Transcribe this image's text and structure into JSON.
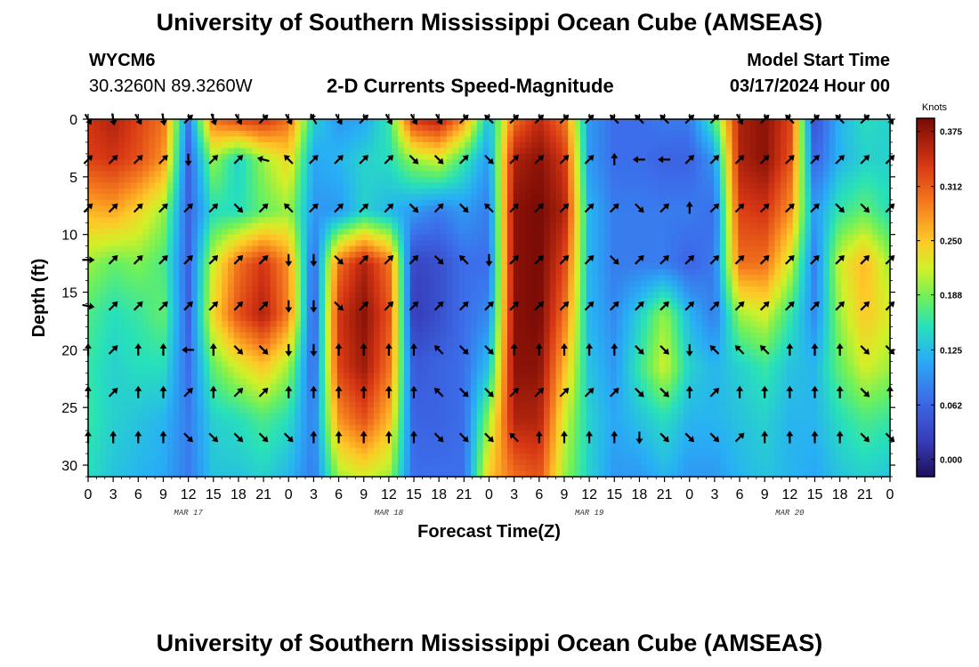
{
  "header": {
    "title": "University of Southern Mississippi Ocean Cube (AMSEAS)",
    "station_id": "WYCM6",
    "coordinates": "30.3260N  89.3260W",
    "plot_title": "2-D Currents Speed-Magnitude",
    "model_start_label": "Model Start Time",
    "model_start_value": "03/17/2024 Hour 00"
  },
  "footer": {
    "title": "University of Southern Mississippi Ocean Cube (AMSEAS)"
  },
  "chart_data": {
    "type": "heatmap",
    "title": "2-D Currents Speed-Magnitude",
    "xlabel": "Forecast Time(Z)",
    "ylabel": "Depth (ft)",
    "x_range": [
      0,
      96
    ],
    "y_range": [
      0,
      31
    ],
    "x_ticks": [
      0,
      3,
      6,
      9,
      12,
      15,
      18,
      21,
      24,
      27,
      30,
      33,
      36,
      39,
      42,
      45,
      48,
      51,
      54,
      57,
      60,
      63,
      66,
      69,
      72,
      75,
      78,
      81,
      84,
      87,
      90,
      93,
      96
    ],
    "x_tick_labels": [
      "0",
      "3",
      "6",
      "9",
      "12",
      "15",
      "18",
      "21",
      "0",
      "3",
      "6",
      "9",
      "12",
      "15",
      "18",
      "21",
      "0",
      "3",
      "6",
      "9",
      "12",
      "15",
      "18",
      "21",
      "0",
      "3",
      "6",
      "9",
      "12",
      "15",
      "18",
      "21",
      "0"
    ],
    "y_ticks": [
      0,
      5,
      10,
      15,
      20,
      25,
      30
    ],
    "y_tick_labels": [
      "0",
      "5",
      "10",
      "15",
      "20",
      "25",
      "30"
    ],
    "date_labels": [
      {
        "label": "MAR 17",
        "hour": 12
      },
      {
        "label": "MAR 18",
        "hour": 36
      },
      {
        "label": "MAR 19",
        "hour": 60
      },
      {
        "label": "MAR 20",
        "hour": 84
      }
    ],
    "colorbar": {
      "unit": "Knots",
      "min": -0.02,
      "max": 0.39,
      "ticks": [
        0.375,
        0.312,
        0.25,
        0.188,
        0.125,
        0.062,
        0.0
      ],
      "tick_labels": [
        "0.375",
        "0.312",
        "0.250",
        "0.188",
        "0.125",
        "0.062",
        "0.000"
      ]
    },
    "speed_profiles": [
      {
        "hour": 0,
        "speeds": [
          0.34,
          0.33,
          0.26,
          0.2,
          0.17,
          0.16,
          0.16,
          0.15
        ]
      },
      {
        "hour": 3,
        "speeds": [
          0.36,
          0.34,
          0.27,
          0.18,
          0.15,
          0.14,
          0.14,
          0.13
        ]
      },
      {
        "hour": 6,
        "speeds": [
          0.33,
          0.32,
          0.24,
          0.19,
          0.16,
          0.15,
          0.13,
          0.12
        ]
      },
      {
        "hour": 9,
        "speeds": [
          0.3,
          0.28,
          0.2,
          0.17,
          0.18,
          0.15,
          0.12,
          0.11
        ]
      },
      {
        "hour": 12,
        "speeds": [
          0.08,
          0.06,
          0.06,
          0.06,
          0.06,
          0.07,
          0.08,
          0.08
        ]
      },
      {
        "hour": 15,
        "speeds": [
          0.3,
          0.2,
          0.15,
          0.22,
          0.24,
          0.18,
          0.14,
          0.13
        ]
      },
      {
        "hour": 18,
        "speeds": [
          0.33,
          0.14,
          0.15,
          0.3,
          0.32,
          0.22,
          0.15,
          0.13
        ]
      },
      {
        "hour": 21,
        "speeds": [
          0.34,
          0.2,
          0.18,
          0.34,
          0.36,
          0.25,
          0.17,
          0.14
        ]
      },
      {
        "hour": 24,
        "speeds": [
          0.3,
          0.24,
          0.2,
          0.28,
          0.29,
          0.2,
          0.15,
          0.12
        ]
      },
      {
        "hour": 27,
        "speeds": [
          0.14,
          0.11,
          0.1,
          0.06,
          0.05,
          0.06,
          0.08,
          0.08
        ]
      },
      {
        "hour": 30,
        "speeds": [
          0.1,
          0.12,
          0.1,
          0.3,
          0.34,
          0.33,
          0.28,
          0.2
        ]
      },
      {
        "hour": 33,
        "speeds": [
          0.11,
          0.14,
          0.14,
          0.36,
          0.38,
          0.37,
          0.32,
          0.22
        ]
      },
      {
        "hour": 36,
        "speeds": [
          0.16,
          0.15,
          0.12,
          0.3,
          0.32,
          0.3,
          0.26,
          0.2
        ]
      },
      {
        "hour": 39,
        "speeds": [
          0.34,
          0.2,
          0.1,
          0.03,
          0.02,
          0.05,
          0.06,
          0.07
        ]
      },
      {
        "hour": 42,
        "speeds": [
          0.36,
          0.22,
          0.08,
          0.04,
          0.04,
          0.06,
          0.06,
          0.07
        ]
      },
      {
        "hour": 45,
        "speeds": [
          0.28,
          0.16,
          0.1,
          0.07,
          0.07,
          0.07,
          0.07,
          0.07
        ]
      },
      {
        "hour": 48,
        "speeds": [
          0.12,
          0.1,
          0.08,
          0.07,
          0.09,
          0.13,
          0.2,
          0.25
        ]
      },
      {
        "hour": 51,
        "speeds": [
          0.3,
          0.36,
          0.38,
          0.38,
          0.38,
          0.38,
          0.36,
          0.3
        ]
      },
      {
        "hour": 54,
        "speeds": [
          0.35,
          0.38,
          0.39,
          0.39,
          0.39,
          0.38,
          0.36,
          0.32
        ]
      },
      {
        "hour": 57,
        "speeds": [
          0.3,
          0.34,
          0.36,
          0.33,
          0.3,
          0.26,
          0.22,
          0.2
        ]
      },
      {
        "hour": 60,
        "speeds": [
          0.1,
          0.1,
          0.12,
          0.12,
          0.12,
          0.13,
          0.14,
          0.14
        ]
      },
      {
        "hour": 63,
        "speeds": [
          0.07,
          0.07,
          0.08,
          0.08,
          0.09,
          0.1,
          0.11,
          0.1
        ]
      },
      {
        "hour": 66,
        "speeds": [
          0.07,
          0.07,
          0.08,
          0.08,
          0.14,
          0.16,
          0.13,
          0.1
        ]
      },
      {
        "hour": 69,
        "speeds": [
          0.08,
          0.06,
          0.08,
          0.08,
          0.2,
          0.22,
          0.15,
          0.12
        ]
      },
      {
        "hour": 72,
        "speeds": [
          0.08,
          0.06,
          0.08,
          0.06,
          0.12,
          0.14,
          0.12,
          0.1
        ]
      },
      {
        "hour": 75,
        "speeds": [
          0.17,
          0.1,
          0.07,
          0.08,
          0.08,
          0.12,
          0.12,
          0.1
        ]
      },
      {
        "hour": 78,
        "speeds": [
          0.36,
          0.36,
          0.33,
          0.3,
          0.2,
          0.14,
          0.13,
          0.12
        ]
      },
      {
        "hour": 81,
        "speeds": [
          0.38,
          0.38,
          0.34,
          0.3,
          0.22,
          0.16,
          0.14,
          0.13
        ]
      },
      {
        "hour": 84,
        "speeds": [
          0.33,
          0.32,
          0.28,
          0.22,
          0.16,
          0.13,
          0.12,
          0.12
        ]
      },
      {
        "hour": 87,
        "speeds": [
          0.04,
          0.06,
          0.1,
          0.08,
          0.09,
          0.12,
          0.12,
          0.11
        ]
      },
      {
        "hour": 90,
        "speeds": [
          0.12,
          0.12,
          0.16,
          0.22,
          0.2,
          0.18,
          0.15,
          0.13
        ]
      },
      {
        "hour": 93,
        "speeds": [
          0.15,
          0.14,
          0.18,
          0.26,
          0.25,
          0.22,
          0.17,
          0.14
        ]
      },
      {
        "hour": 96,
        "speeds": [
          0.14,
          0.14,
          0.15,
          0.2,
          0.22,
          0.2,
          0.16,
          0.13
        ]
      }
    ],
    "profile_depths": [
      0,
      3.5,
      8,
      12.5,
      17,
      21.5,
      26,
      31
    ],
    "vector_depths": [
      0,
      3.5,
      7.7,
      12.2,
      16.2,
      20,
      23.7,
      27.6
    ],
    "vector_hours": [
      0,
      3,
      6,
      9,
      12,
      15,
      18,
      21,
      24,
      27,
      30,
      33,
      36,
      39,
      42,
      45,
      48,
      51,
      54,
      57,
      60,
      63,
      66,
      69,
      72,
      75,
      78,
      81,
      84,
      87,
      90,
      93,
      96
    ],
    "vector_direction_note": "arrow directions in compass degrees, clockwise from up; estimated",
    "vector_directions_deg": [
      [
        150,
        170,
        150,
        170,
        45,
        160,
        150,
        45,
        150,
        330,
        150,
        45,
        150,
        150,
        150,
        45,
        315,
        45,
        45,
        45,
        45,
        315,
        315,
        315,
        45,
        45,
        150,
        45,
        315,
        45,
        315,
        45,
        150
      ],
      [
        45,
        45,
        45,
        45,
        180,
        45,
        45,
        285,
        315,
        45,
        45,
        45,
        45,
        135,
        135,
        45,
        135,
        45,
        45,
        45,
        45,
        0,
        270,
        270,
        45,
        45,
        45,
        45,
        45,
        45,
        45,
        45,
        45
      ],
      [
        45,
        45,
        45,
        45,
        45,
        45,
        135,
        45,
        315,
        45,
        45,
        45,
        45,
        135,
        45,
        135,
        315,
        45,
        45,
        45,
        45,
        45,
        135,
        45,
        0,
        45,
        45,
        45,
        45,
        45,
        135,
        135,
        45
      ],
      [
        90,
        45,
        45,
        45,
        45,
        45,
        45,
        45,
        180,
        180,
        135,
        45,
        45,
        45,
        135,
        315,
        180,
        45,
        45,
        45,
        45,
        135,
        45,
        45,
        45,
        45,
        45,
        45,
        45,
        45,
        45,
        45,
        45
      ],
      [
        100,
        45,
        45,
        45,
        45,
        45,
        45,
        45,
        180,
        180,
        135,
        45,
        45,
        45,
        45,
        45,
        45,
        45,
        45,
        45,
        45,
        45,
        45,
        45,
        45,
        45,
        45,
        45,
        45,
        45,
        45,
        45,
        45
      ],
      [
        0,
        45,
        0,
        0,
        270,
        0,
        135,
        135,
        180,
        180,
        0,
        0,
        0,
        0,
        315,
        135,
        135,
        0,
        0,
        0,
        0,
        0,
        135,
        135,
        180,
        315,
        315,
        315,
        0,
        0,
        0,
        135,
        135
      ],
      [
        0,
        45,
        0,
        0,
        45,
        0,
        45,
        45,
        0,
        0,
        0,
        0,
        0,
        0,
        315,
        135,
        135,
        45,
        45,
        45,
        45,
        45,
        135,
        135,
        0,
        45,
        0,
        0,
        0,
        0,
        0,
        135,
        0
      ],
      [
        0,
        0,
        0,
        0,
        135,
        135,
        135,
        135,
        135,
        0,
        0,
        0,
        0,
        0,
        135,
        135,
        135,
        315,
        0,
        0,
        0,
        0,
        180,
        135,
        135,
        135,
        45,
        0,
        0,
        0,
        0,
        135,
        135
      ]
    ]
  }
}
